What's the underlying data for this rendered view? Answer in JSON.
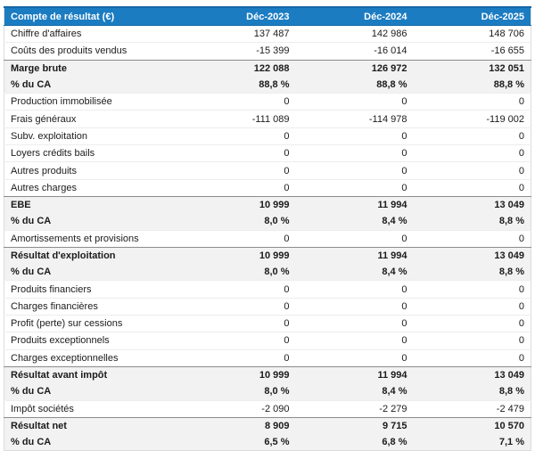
{
  "table": {
    "header": {
      "label": "Compte de résultat (€)",
      "columns": [
        "Déc-2023",
        "Déc-2024",
        "Déc-2025"
      ]
    },
    "rows": [
      {
        "label": "Chiffre d'affaires",
        "values": [
          "137 487",
          "142 986",
          "148 706"
        ],
        "style": "normal"
      },
      {
        "label": "Coûts des produits vendus",
        "values": [
          "-15 399",
          "-16 014",
          "-16 655"
        ],
        "style": "normal"
      },
      {
        "label": "Marge brute",
        "values": [
          "122 088",
          "126 972",
          "132 051"
        ],
        "style": "total"
      },
      {
        "label": "% du CA",
        "values": [
          "88,8 %",
          "88,8 %",
          "88,8 %"
        ],
        "style": "total"
      },
      {
        "label": "Production immobilisée",
        "values": [
          "0",
          "0",
          "0"
        ],
        "style": "normal"
      },
      {
        "label": "Frais généraux",
        "values": [
          "-111 089",
          "-114 978",
          "-119 002"
        ],
        "style": "normal"
      },
      {
        "label": "Subv. exploitation",
        "values": [
          "0",
          "0",
          "0"
        ],
        "style": "normal"
      },
      {
        "label": "Loyers crédits bails",
        "values": [
          "0",
          "0",
          "0"
        ],
        "style": "normal"
      },
      {
        "label": "Autres produits",
        "values": [
          "0",
          "0",
          "0"
        ],
        "style": "normal"
      },
      {
        "label": "Autres charges",
        "values": [
          "0",
          "0",
          "0"
        ],
        "style": "normal"
      },
      {
        "label": "EBE",
        "values": [
          "10 999",
          "11 994",
          "13 049"
        ],
        "style": "total"
      },
      {
        "label": "% du CA",
        "values": [
          "8,0 %",
          "8,4 %",
          "8,8 %"
        ],
        "style": "total"
      },
      {
        "label": "Amortissements et provisions",
        "values": [
          "0",
          "0",
          "0"
        ],
        "style": "normal"
      },
      {
        "label": "Résultat d'exploitation",
        "values": [
          "10 999",
          "11 994",
          "13 049"
        ],
        "style": "total"
      },
      {
        "label": "% du CA",
        "values": [
          "8,0 %",
          "8,4 %",
          "8,8 %"
        ],
        "style": "total"
      },
      {
        "label": "Produits financiers",
        "values": [
          "0",
          "0",
          "0"
        ],
        "style": "normal"
      },
      {
        "label": "Charges financières",
        "values": [
          "0",
          "0",
          "0"
        ],
        "style": "normal"
      },
      {
        "label": "Profit (perte) sur cessions",
        "values": [
          "0",
          "0",
          "0"
        ],
        "style": "normal"
      },
      {
        "label": "Produits exceptionnels",
        "values": [
          "0",
          "0",
          "0"
        ],
        "style": "normal"
      },
      {
        "label": "Charges exceptionnelles",
        "values": [
          "0",
          "0",
          "0"
        ],
        "style": "normal"
      },
      {
        "label": "Résultat avant impôt",
        "values": [
          "10 999",
          "11 994",
          "13 049"
        ],
        "style": "total"
      },
      {
        "label": "% du CA",
        "values": [
          "8,0 %",
          "8,4 %",
          "8,8 %"
        ],
        "style": "total"
      },
      {
        "label": "Impôt sociétés",
        "values": [
          "-2 090",
          "-2 279",
          "-2 479"
        ],
        "style": "normal"
      },
      {
        "label": "Résultat net",
        "values": [
          "8 909",
          "9 715",
          "10 570"
        ],
        "style": "total"
      },
      {
        "label": "% du CA",
        "values": [
          "6,5 %",
          "6,8 %",
          "7,1 %"
        ],
        "style": "total"
      }
    ],
    "colors": {
      "header_bg": "#1b7cc2",
      "header_border": "#1467a6",
      "header_text": "#ffffff",
      "total_bg": "#f2f2f2",
      "separator": "#ededed",
      "section_separator": "#8c8c8c",
      "outer_border": "#dcdcdc",
      "text_color": "#1b1b1b"
    }
  },
  "chart_data": {
    "type": "table",
    "title": "Compte de résultat (€)",
    "columns": [
      "Compte de résultat (€)",
      "Déc-2023",
      "Déc-2024",
      "Déc-2025"
    ],
    "rows": [
      [
        "Chiffre d'affaires",
        137487,
        142986,
        148706
      ],
      [
        "Coûts des produits vendus",
        -15399,
        -16014,
        -16655
      ],
      [
        "Marge brute",
        122088,
        126972,
        132051
      ],
      [
        "% du CA",
        "88,8 %",
        "88,8 %",
        "88,8 %"
      ],
      [
        "Production immobilisée",
        0,
        0,
        0
      ],
      [
        "Frais généraux",
        -111089,
        -114978,
        -119002
      ],
      [
        "Subv. exploitation",
        0,
        0,
        0
      ],
      [
        "Loyers crédits bails",
        0,
        0,
        0
      ],
      [
        "Autres produits",
        0,
        0,
        0
      ],
      [
        "Autres charges",
        0,
        0,
        0
      ],
      [
        "EBE",
        10999,
        11994,
        13049
      ],
      [
        "% du CA",
        "8,0 %",
        "8,4 %",
        "8,8 %"
      ],
      [
        "Amortissements et provisions",
        0,
        0,
        0
      ],
      [
        "Résultat d'exploitation",
        10999,
        11994,
        13049
      ],
      [
        "% du CA",
        "8,0 %",
        "8,4 %",
        "8,8 %"
      ],
      [
        "Produits financiers",
        0,
        0,
        0
      ],
      [
        "Charges financières",
        0,
        0,
        0
      ],
      [
        "Profit (perte) sur cessions",
        0,
        0,
        0
      ],
      [
        "Produits exceptionnels",
        0,
        0,
        0
      ],
      [
        "Charges exceptionnelles",
        0,
        0,
        0
      ],
      [
        "Résultat avant impôt",
        10999,
        11994,
        13049
      ],
      [
        "% du CA",
        "8,0 %",
        "8,4 %",
        "8,8 %"
      ],
      [
        "Impôt sociétés",
        -2090,
        -2279,
        -2479
      ],
      [
        "Résultat net",
        8909,
        9715,
        10570
      ],
      [
        "% du CA",
        "6,5 %",
        "6,8 %",
        "7,1 %"
      ]
    ]
  }
}
